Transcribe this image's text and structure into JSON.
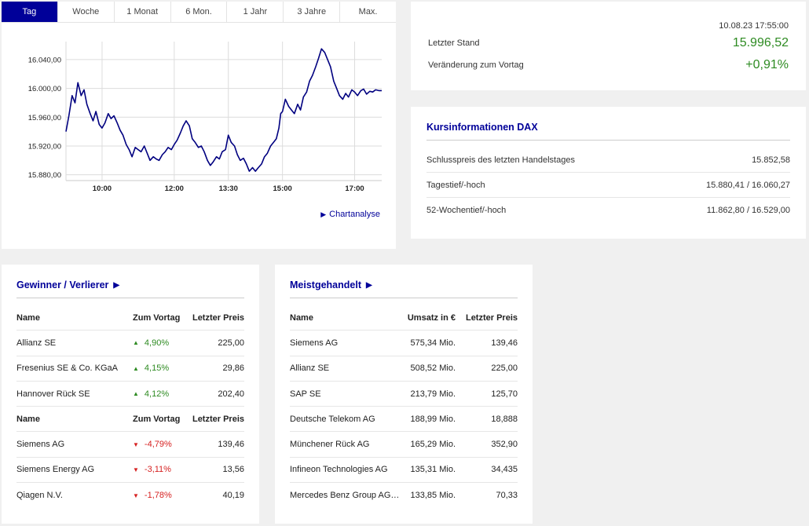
{
  "tabs": [
    {
      "label": "Tag",
      "active": true
    },
    {
      "label": "Woche",
      "active": false
    },
    {
      "label": "1 Monat",
      "active": false
    },
    {
      "label": "6 Mon.",
      "active": false
    },
    {
      "label": "1 Jahr",
      "active": false
    },
    {
      "label": "3 Jahre",
      "active": false
    },
    {
      "label": "Max.",
      "active": false
    }
  ],
  "chart_data": {
    "type": "line",
    "x_tick_labels": [
      "10:00",
      "12:00",
      "13:30",
      "15:00",
      "17:00"
    ],
    "x_ticks_hours": [
      10,
      12,
      13.5,
      15,
      17
    ],
    "x_range_hours": [
      9.0,
      17.75
    ],
    "y_tick_labels": [
      "16.040,00",
      "16.000,00",
      "15.960,00",
      "15.920,00",
      "15.880,00"
    ],
    "y_ticks": [
      16040,
      16000,
      15960,
      15920,
      15880
    ],
    "ylim": [
      15872,
      16065
    ],
    "grid": true,
    "color": "#000080",
    "x": [
      9.0,
      9.08,
      9.17,
      9.25,
      9.33,
      9.42,
      9.5,
      9.58,
      9.67,
      9.75,
      9.83,
      9.92,
      10.0,
      10.08,
      10.17,
      10.25,
      10.33,
      10.42,
      10.5,
      10.58,
      10.67,
      10.75,
      10.83,
      10.92,
      11.0,
      11.08,
      11.17,
      11.25,
      11.33,
      11.42,
      11.5,
      11.58,
      11.67,
      11.75,
      11.83,
      11.92,
      12.0,
      12.08,
      12.17,
      12.25,
      12.33,
      12.42,
      12.5,
      12.58,
      12.67,
      12.75,
      12.83,
      12.92,
      13.0,
      13.08,
      13.17,
      13.25,
      13.33,
      13.42,
      13.5,
      13.58,
      13.67,
      13.75,
      13.83,
      13.92,
      14.0,
      14.08,
      14.17,
      14.25,
      14.33,
      14.42,
      14.5,
      14.58,
      14.67,
      14.75,
      14.83,
      14.9,
      14.95,
      15.0,
      15.08,
      15.17,
      15.25,
      15.33,
      15.42,
      15.5,
      15.58,
      15.67,
      15.75,
      15.83,
      15.92,
      16.0,
      16.08,
      16.17,
      16.25,
      16.33,
      16.42,
      16.5,
      16.58,
      16.67,
      16.75,
      16.83,
      16.92,
      17.0,
      17.08,
      17.17,
      17.25,
      17.33,
      17.42,
      17.5,
      17.58,
      17.67,
      17.75
    ],
    "y": [
      15940,
      15962,
      15990,
      15980,
      16008,
      15990,
      15998,
      15978,
      15965,
      15955,
      15968,
      15950,
      15945,
      15952,
      15965,
      15958,
      15962,
      15952,
      15942,
      15935,
      15922,
      15915,
      15905,
      15918,
      15915,
      15912,
      15920,
      15910,
      15900,
      15905,
      15902,
      15900,
      15908,
      15912,
      15918,
      15915,
      15922,
      15928,
      15938,
      15948,
      15955,
      15948,
      15930,
      15925,
      15918,
      15920,
      15912,
      15900,
      15893,
      15898,
      15905,
      15902,
      15912,
      15915,
      15935,
      15925,
      15920,
      15908,
      15900,
      15903,
      15895,
      15885,
      15890,
      15885,
      15890,
      15895,
      15905,
      15910,
      15920,
      15925,
      15930,
      15945,
      15965,
      15968,
      15985,
      15975,
      15970,
      15965,
      15978,
      15970,
      15988,
      15995,
      16010,
      16018,
      16030,
      16042,
      16055,
      16050,
      16040,
      16030,
      16010,
      16000,
      15990,
      15985,
      15993,
      15988,
      15998,
      15995,
      15990,
      15997,
      15999,
      15992,
      15996,
      15995,
      15998,
      15997,
      15997
    ]
  },
  "chart_link": {
    "label": "Chartanalyse",
    "icon": "play-triangle-icon"
  },
  "summary": {
    "timestamp": "10.08.23 17:55:00",
    "last_label": "Letzter Stand",
    "last_value": "15.996,52",
    "change_label": "Veränderung zum Vortag",
    "change_value": "+0,91%",
    "positive_color": "#2e8b22"
  },
  "kurs": {
    "title": "Kursinformationen DAX",
    "rows": [
      {
        "label": "Schlusspreis des letzten Handelstages",
        "value": "15.852,58"
      },
      {
        "label": "Tagestief/-hoch",
        "value": "15.880,41 / 16.060,27"
      },
      {
        "label": "52-Wochentief/-hoch",
        "value": "11.862,80 / 16.529,00"
      }
    ]
  },
  "gainers_losers": {
    "title": "Gewinner / Verlierer",
    "headers": {
      "name": "Name",
      "change": "Zum Vortag",
      "price": "Letzter Preis"
    },
    "gainers": [
      {
        "name": "Allianz SE",
        "change": "4,90%",
        "price": "225,00"
      },
      {
        "name": "Fresenius SE & Co. KGaA",
        "change": "4,15%",
        "price": "29,86"
      },
      {
        "name": "Hannover Rück SE",
        "change": "4,12%",
        "price": "202,40"
      }
    ],
    "losers": [
      {
        "name": "Siemens AG",
        "change": "-4,79%",
        "price": "139,46"
      },
      {
        "name": "Siemens Energy AG",
        "change": "-3,11%",
        "price": "13,56"
      },
      {
        "name": "Qiagen N.V.",
        "change": "-1,78%",
        "price": "40,19"
      }
    ],
    "up_color": "#2e8b22",
    "down_color": "#d62020"
  },
  "most_traded": {
    "title": "Meistgehandelt",
    "headers": {
      "name": "Name",
      "volume": "Umsatz in €",
      "price": "Letzter Preis"
    },
    "rows": [
      {
        "name": "Siemens AG",
        "volume": "575,34 Mio.",
        "price": "139,46"
      },
      {
        "name": "Allianz SE",
        "volume": "508,52 Mio.",
        "price": "225,00"
      },
      {
        "name": "SAP SE",
        "volume": "213,79 Mio.",
        "price": "125,70"
      },
      {
        "name": "Deutsche Telekom AG",
        "volume": "188,99 Mio.",
        "price": "18,888"
      },
      {
        "name": "Münchener Rück AG",
        "volume": "165,29 Mio.",
        "price": "352,90"
      },
      {
        "name": "Infineon Technologies AG",
        "volume": "135,31 Mio.",
        "price": "34,435"
      },
      {
        "name": "Mercedes Benz Group AG ...",
        "volume": "133,85 Mio.",
        "price": "70,33"
      }
    ]
  }
}
